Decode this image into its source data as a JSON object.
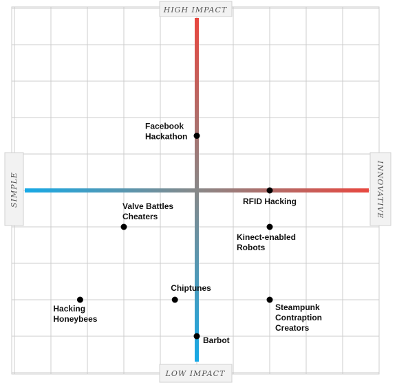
{
  "chart_data": {
    "type": "scatter",
    "title": "",
    "axes": {
      "top": "HIGH IMPACT",
      "bottom": "LOW IMPACT",
      "left": "SIMPLE",
      "right": "INNOVATIVE"
    },
    "xlim": [
      -5,
      5
    ],
    "ylim": [
      -5,
      5
    ],
    "grid": true,
    "colors": {
      "high_end": "#e8473f",
      "low_end": "#16a9e6",
      "grid": "#cccccc",
      "point": "#000000"
    },
    "points": [
      {
        "label": [
          "Facebook",
          "Hackathon"
        ],
        "x": 0,
        "y": 1.5
      },
      {
        "label": [
          "RFID Hacking"
        ],
        "x": 2,
        "y": 0
      },
      {
        "label": [
          "Valve Battles",
          "Cheaters"
        ],
        "x": -2,
        "y": -1
      },
      {
        "label": [
          "Kinect-enabled",
          "Robots"
        ],
        "x": 2,
        "y": -1
      },
      {
        "label": [
          "Chiptunes"
        ],
        "x": -0.6,
        "y": -3
      },
      {
        "label": [
          "Hacking",
          "Honeybees"
        ],
        "x": -3.2,
        "y": -3
      },
      {
        "label": [
          "Steampunk",
          "Contraption",
          "Creators"
        ],
        "x": 2,
        "y": -3
      },
      {
        "label": [
          "Barbot"
        ],
        "x": 0,
        "y": -4
      }
    ]
  }
}
